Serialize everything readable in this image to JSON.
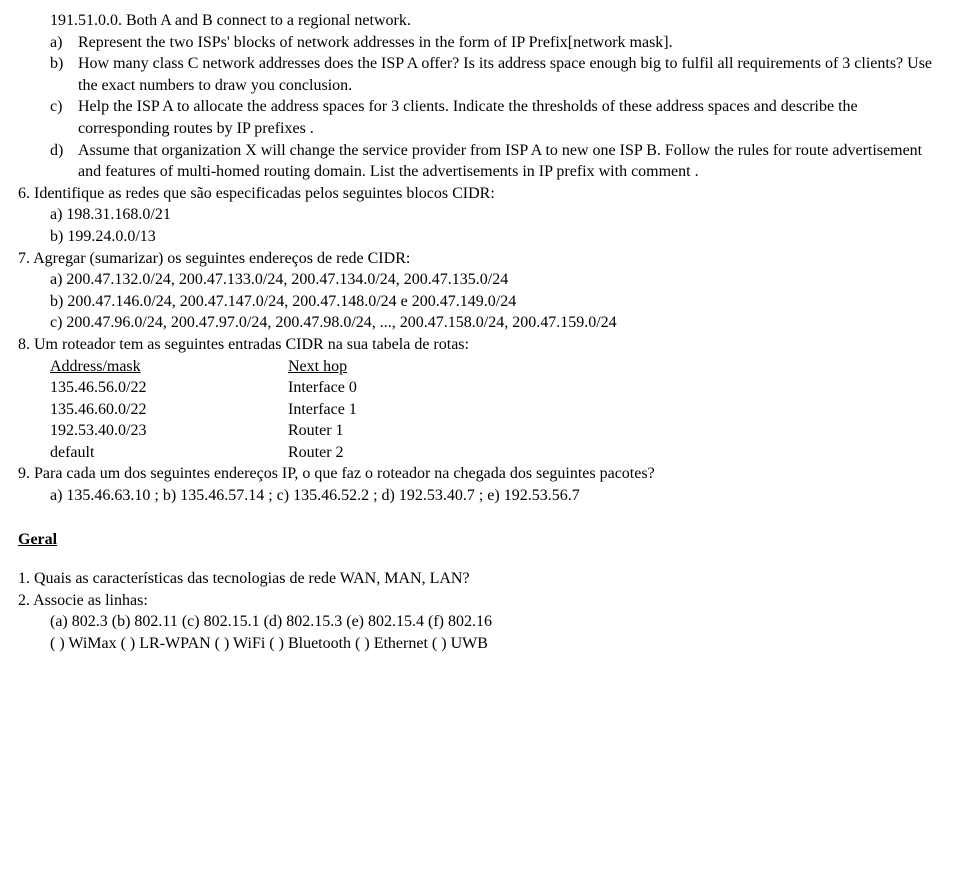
{
  "preamble": "191.51.0.0. Both A and B connect to a regional network.",
  "parts": {
    "a": {
      "marker": "a)",
      "text": "Represent the two ISPs' blocks of network addresses in the form of IP Prefix[network mask]."
    },
    "b": {
      "marker": "b)",
      "text": "How many class C network addresses does the ISP A offer? Is its address space enough big to fulfil all requirements of 3 clients? Use the exact numbers to draw you conclusion."
    },
    "c": {
      "marker": "c)",
      "text": "Help the ISP A to allocate the address spaces for 3 clients. Indicate the thresholds of these address spaces and describe the corresponding routes by IP prefixes ."
    },
    "d": {
      "marker": "d)",
      "text": "Assume that organization X will change the service provider from ISP A to new one ISP B. Follow the rules for route advertisement and features of multi-homed routing domain. List the advertisements in IP prefix with comment ."
    }
  },
  "q6": {
    "line": "6. Identifique as redes que são especificadas pelos seguintes blocos CIDR:",
    "a": "a) 198.31.168.0/21",
    "b": "b) 199.24.0.0/13"
  },
  "q7": {
    "line": "7. Agregar (sumarizar) os seguintes endereços de rede CIDR:",
    "a": "a) 200.47.132.0/24, 200.47.133.0/24, 200.47.134.0/24, 200.47.135.0/24",
    "b": "b) 200.47.146.0/24, 200.47.147.0/24, 200.47.148.0/24 e 200.47.149.0/24",
    "c": "c) 200.47.96.0/24, 200.47.97.0/24, 200.47.98.0/24, ..., 200.47.158.0/24, 200.47.159.0/24"
  },
  "q8": {
    "line": "8. Um roteador tem as seguintes entradas CIDR na sua tabela de rotas:",
    "header_a": "Address/mask",
    "header_b": "Next hop ",
    "rows": [
      {
        "a": "135.46.56.0/22",
        "b": "Interface 0"
      },
      {
        "a": "135.46.60.0/22",
        "b": "Interface 1"
      },
      {
        "a": "192.53.40.0/23",
        "b": "Router 1"
      },
      {
        "a": "default",
        "b": "Router 2"
      }
    ]
  },
  "q9": {
    "line": "9. Para cada um dos seguintes endereços IP, o que faz o roteador na chegada dos seguintes pacotes?",
    "sub": "a) 135.46.63.10 ;  b) 135.46.57.14 ;  c) 135.46.52.2 ;  d) 192.53.40.7 ;  e) 192.53.56.7"
  },
  "geral": {
    "title": "Geral",
    "q1": "1.  Quais as características das tecnologias de rede WAN, MAN, LAN?",
    "q2": "2.  Associe as linhas:",
    "q2_line1": "(a) 802.3  (b) 802.11  (c) 802.15.1  (d) 802.15.3  (e) 802.15.4  (f) 802.16",
    "q2_line2": "( ) WiMax  ( ) LR-WPAN  ( ) WiFi  ( ) Bluetooth  ( ) Ethernet  ( ) UWB"
  }
}
